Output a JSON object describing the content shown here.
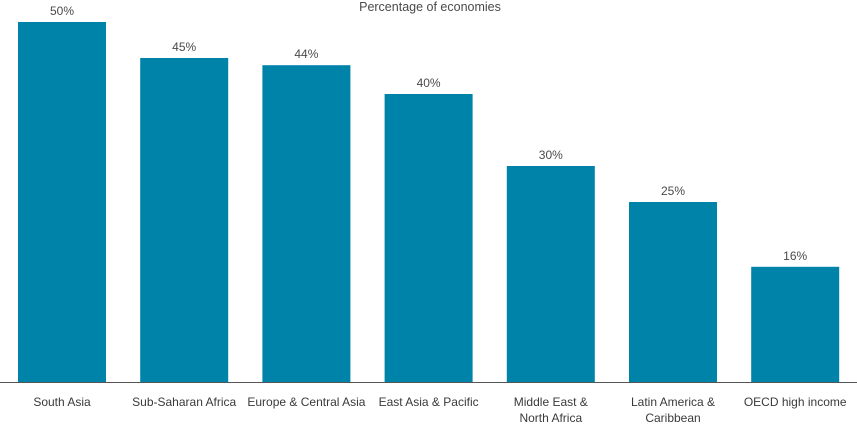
{
  "chart_data": {
    "type": "bar",
    "title": "Percentage of economies",
    "xlabel": "",
    "ylabel": "",
    "categories": [
      [
        "South Asia"
      ],
      [
        "Sub-Saharan Africa"
      ],
      [
        "Europe & Central Asia"
      ],
      [
        "East Asia & Pacific"
      ],
      [
        "Middle East &",
        "North Africa"
      ],
      [
        "Latin America &",
        "Caribbean"
      ],
      [
        "OECD high income"
      ]
    ],
    "values": [
      50,
      45,
      44,
      40,
      30,
      25,
      16
    ],
    "value_labels": [
      "50%",
      "45%",
      "44%",
      "40%",
      "30%",
      "25%",
      "16%"
    ],
    "ylim": [
      0,
      50
    ],
    "grid": false,
    "legend": "none",
    "colors": {
      "bar": "#0083a9",
      "axis": "#555555",
      "text": "#4a4a4a"
    }
  }
}
